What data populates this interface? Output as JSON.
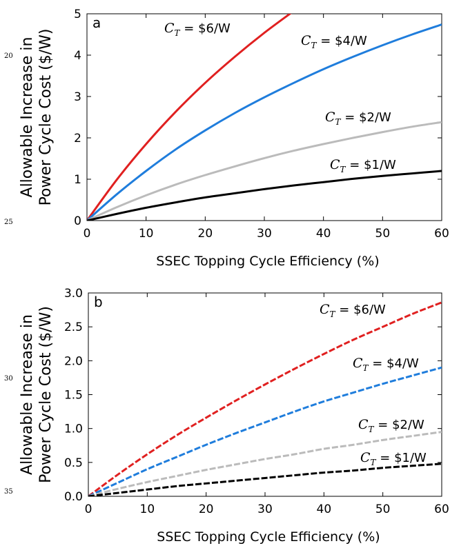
{
  "line_numbers": [
    "20",
    "25",
    "30",
    "35"
  ],
  "chart_data": [
    {
      "type": "line",
      "panel_label": "a",
      "xlabel": "SSEC Topping Cycle  Efficiency (%)",
      "ylabel_lines": [
        "Allowable Increase in",
        "Power Cycle Cost ($/W)"
      ],
      "xlim": [
        0,
        60
      ],
      "ylim": [
        0,
        5
      ],
      "xticks": [
        "0",
        "10",
        "20",
        "30",
        "40",
        "50",
        "60"
      ],
      "yticks": [
        "0",
        "1",
        "2",
        "3",
        "4",
        "5"
      ],
      "grid": false,
      "line_style": "solid",
      "x": [
        0,
        5,
        10,
        15,
        20,
        25,
        30,
        35,
        40,
        45,
        50,
        55,
        60
      ],
      "series": [
        {
          "name": "$6/W",
          "color": "#e02020",
          "values": [
            0,
            0.98,
            1.85,
            2.63,
            3.33,
            3.96,
            4.54,
            5.07,
            null,
            null,
            null,
            null,
            null
          ]
        },
        {
          "name": "$4/W",
          "color": "#1f7ddc",
          "values": [
            0,
            0.63,
            1.2,
            1.72,
            2.18,
            2.6,
            2.98,
            3.33,
            3.66,
            3.96,
            4.24,
            4.5,
            4.74
          ]
        },
        {
          "name": "$2/W",
          "color": "#bbbbbb",
          "values": [
            0,
            0.32,
            0.61,
            0.87,
            1.1,
            1.31,
            1.51,
            1.69,
            1.85,
            2.0,
            2.14,
            2.27,
            2.38
          ]
        },
        {
          "name": "$1/W",
          "color": "#000000",
          "values": [
            0,
            0.16,
            0.31,
            0.44,
            0.56,
            0.66,
            0.76,
            0.85,
            0.93,
            1.01,
            1.08,
            1.14,
            1.2
          ]
        }
      ],
      "annotations": [
        {
          "series": "$6/W",
          "prefix": "C",
          "sub": "T",
          "text": " = $6/W"
        },
        {
          "series": "$4/W",
          "prefix": "C",
          "sub": "T",
          "text": " = $4/W"
        },
        {
          "series": "$2/W",
          "prefix": "C",
          "sub": "T",
          "text": " = $2/W"
        },
        {
          "series": "$1/W",
          "prefix": "C",
          "sub": "T",
          "text": " = $1/W"
        }
      ]
    },
    {
      "type": "line",
      "panel_label": "b",
      "xlabel": "SSEC Topping Cycle  Efficiency (%)",
      "ylabel_lines": [
        "Allowable Increase in",
        "Power Cycle Cost ($/W)"
      ],
      "xlim": [
        0,
        60
      ],
      "ylim": [
        0,
        3
      ],
      "xticks": [
        "0",
        "10",
        "20",
        "30",
        "40",
        "50",
        "60"
      ],
      "yticks": [
        "0.0",
        "0.5",
        "1.0",
        "1.5",
        "2.0",
        "2.5",
        "3.0"
      ],
      "grid": false,
      "line_style": "dashed",
      "x": [
        0,
        5,
        10,
        15,
        20,
        25,
        30,
        35,
        40,
        45,
        50,
        55,
        60
      ],
      "series": [
        {
          "name": "$6/W",
          "color": "#e02020",
          "values": [
            0,
            0.32,
            0.62,
            0.9,
            1.16,
            1.41,
            1.65,
            1.88,
            2.1,
            2.31,
            2.5,
            2.69,
            2.86
          ]
        },
        {
          "name": "$4/W",
          "color": "#1f7ddc",
          "values": [
            0,
            0.2,
            0.4,
            0.58,
            0.76,
            0.93,
            1.09,
            1.25,
            1.4,
            1.53,
            1.66,
            1.78,
            1.9
          ]
        },
        {
          "name": "$2/W",
          "color": "#bbbbbb",
          "values": [
            0,
            0.11,
            0.21,
            0.3,
            0.39,
            0.47,
            0.55,
            0.62,
            0.7,
            0.76,
            0.83,
            0.89,
            0.95
          ]
        },
        {
          "name": "$1/W",
          "color": "#000000",
          "values": [
            0,
            0.05,
            0.1,
            0.15,
            0.19,
            0.23,
            0.27,
            0.31,
            0.35,
            0.38,
            0.42,
            0.45,
            0.48
          ]
        }
      ],
      "annotations": [
        {
          "series": "$6/W",
          "prefix": "C",
          "sub": "T",
          "text": " = $6/W"
        },
        {
          "series": "$4/W",
          "prefix": "C",
          "sub": "T",
          "text": " = $4/W"
        },
        {
          "series": "$2/W",
          "prefix": "C",
          "sub": "T",
          "text": " = $2/W"
        },
        {
          "series": "$1/W",
          "prefix": "C",
          "sub": "T",
          "text": " = $1/W"
        }
      ]
    }
  ]
}
